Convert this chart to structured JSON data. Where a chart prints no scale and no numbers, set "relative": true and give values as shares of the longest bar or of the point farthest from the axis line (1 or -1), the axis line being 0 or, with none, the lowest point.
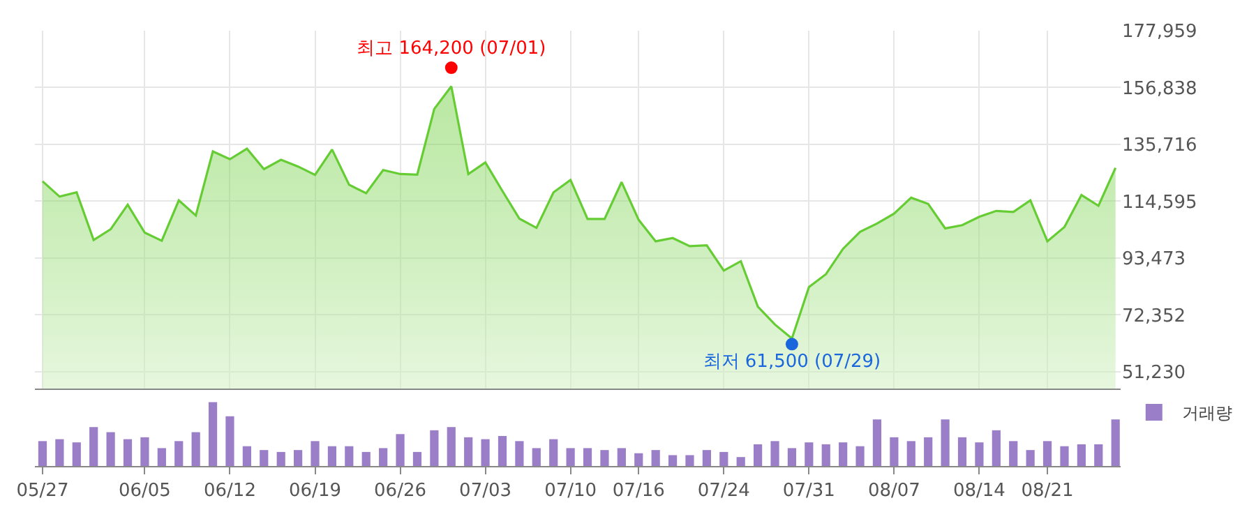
{
  "chart_data": [
    {
      "type": "area",
      "categories": [
        null,
        null,
        null,
        null,
        null,
        null,
        null,
        null,
        null,
        null,
        null,
        null,
        null,
        null,
        null,
        null,
        null,
        null,
        null,
        null,
        null,
        null,
        null,
        null,
        null,
        null,
        null,
        null,
        null,
        null,
        null,
        null,
        null,
        null,
        null,
        null,
        null,
        null,
        null,
        null,
        null,
        null,
        null,
        null,
        null,
        null,
        null,
        null,
        null,
        null,
        null,
        null,
        null,
        null,
        null,
        null,
        null,
        null,
        null,
        null,
        null,
        null,
        null,
        null
      ],
      "series": [
        {
          "color": "#66cc33",
          "values": [
            122000,
            116300,
            117900,
            100200,
            104200,
            113300,
            102900,
            99900,
            114900,
            109300,
            133100,
            130200,
            134100,
            126500,
            130000,
            127500,
            124400,
            133800,
            120700,
            117600,
            126200,
            124700,
            124500,
            148900,
            157300,
            124700,
            129000,
            118400,
            108100,
            104700,
            117900,
            122500,
            108000,
            108000,
            121700,
            107700,
            99700,
            100900,
            97900,
            98200,
            88800,
            92300,
            75400,
            68800,
            63600,
            82700,
            87500,
            96900,
            103200,
            106300,
            110000,
            115900,
            113600,
            104500,
            105700,
            108800,
            111000,
            110600,
            114900,
            99700,
            105000,
            116900,
            112900,
            127000
          ]
        },
        {
          "type": "scatter",
          "marker": "circle",
          "color": "#ff0000",
          "values": [
            null,
            null,
            null,
            null,
            null,
            null,
            null,
            null,
            null,
            null,
            null,
            null,
            null,
            null,
            null,
            null,
            null,
            null,
            null,
            null,
            null,
            null,
            null,
            null,
            164200,
            null,
            null,
            null,
            null,
            null,
            null,
            null,
            null,
            null,
            null,
            null,
            null,
            null,
            null,
            null,
            null,
            null,
            null,
            null,
            null,
            null,
            null,
            null,
            null,
            null,
            null,
            null,
            null,
            null,
            null,
            null,
            null,
            null,
            null,
            null,
            null,
            null,
            null,
            null
          ],
          "value_labels": [
            null,
            null,
            null,
            null,
            null,
            null,
            null,
            null,
            null,
            null,
            null,
            null,
            null,
            null,
            null,
            null,
            null,
            null,
            null,
            null,
            null,
            null,
            null,
            null,
            "최고 164,200 (07/01)",
            null,
            null,
            null,
            null,
            null,
            null,
            null,
            null,
            null,
            null,
            null,
            null,
            null,
            null,
            null,
            null,
            null,
            null,
            null,
            null,
            null,
            null,
            null,
            null,
            null,
            null,
            null,
            null,
            null,
            null,
            null,
            null,
            null,
            null,
            null,
            null,
            null,
            null,
            null
          ]
        },
        {
          "type": "scatter",
          "marker": "circle",
          "color": "#1a66dd",
          "values": [
            null,
            null,
            null,
            null,
            null,
            null,
            null,
            null,
            null,
            null,
            null,
            null,
            null,
            null,
            null,
            null,
            null,
            null,
            null,
            null,
            null,
            null,
            null,
            null,
            null,
            null,
            null,
            null,
            null,
            null,
            null,
            null,
            null,
            null,
            null,
            null,
            null,
            null,
            null,
            null,
            null,
            null,
            null,
            null,
            61500,
            null,
            null,
            null,
            null,
            null,
            null,
            null,
            null,
            null,
            null,
            null,
            null,
            null,
            null,
            null,
            null,
            null,
            null,
            null
          ],
          "value_labels": [
            null,
            null,
            null,
            null,
            null,
            null,
            null,
            null,
            null,
            null,
            null,
            null,
            null,
            null,
            null,
            null,
            null,
            null,
            null,
            null,
            null,
            null,
            null,
            null,
            null,
            null,
            null,
            null,
            null,
            null,
            null,
            null,
            null,
            null,
            null,
            null,
            null,
            null,
            null,
            null,
            null,
            null,
            null,
            null,
            "최저 61,500 (07/29)",
            null,
            null,
            null,
            null,
            null,
            null,
            null,
            null,
            null,
            null,
            null,
            null,
            null,
            null,
            null,
            null,
            null,
            null,
            null
          ]
        }
      ],
      "ylim": [
        45000,
        177959
      ],
      "yticks": [
        {
          "value": 51230,
          "label": "51,230"
        },
        {
          "value": 72352,
          "label": "72,352"
        },
        {
          "value": 93473,
          "label": "93,473"
        },
        {
          "value": 114595,
          "label": "114,595"
        },
        {
          "value": 135716,
          "label": "135,716"
        },
        {
          "value": 156838,
          "label": "156,838"
        },
        {
          "value": 177959,
          "label": "177,959"
        }
      ],
      "grid": true,
      "tick_labels": "y",
      "marker": "none"
    },
    {
      "type": "bar",
      "relative": true,
      "legend": "top right",
      "categories": [
        "05/27",
        null,
        null,
        null,
        null,
        null,
        "06/05",
        null,
        null,
        null,
        null,
        "06/12",
        null,
        null,
        null,
        null,
        "06/19",
        null,
        null,
        null,
        null,
        "06/26",
        null,
        null,
        null,
        null,
        "07/03",
        null,
        null,
        null,
        null,
        "07/10",
        null,
        null,
        null,
        "07/16",
        null,
        null,
        null,
        null,
        "07/24",
        null,
        null,
        null,
        null,
        "07/31",
        null,
        null,
        null,
        null,
        "08/07",
        null,
        null,
        null,
        null,
        "08/14",
        null,
        null,
        null,
        "08/21",
        null,
        null,
        null,
        null
      ],
      "series": [
        {
          "name": "거래량",
          "color": "#9a7fc8",
          "values": [
            0.39,
            0.42,
            0.37,
            0.61,
            0.53,
            0.42,
            0.45,
            0.28,
            0.39,
            0.53,
            1,
            0.78,
            0.31,
            0.25,
            0.22,
            0.25,
            0.39,
            0.31,
            0.31,
            0.22,
            0.28,
            0.5,
            0.22,
            0.56,
            0.61,
            0.45,
            0.42,
            0.47,
            0.39,
            0.28,
            0.42,
            0.28,
            0.28,
            0.25,
            0.28,
            0.2,
            0.25,
            0.17,
            0.17,
            0.25,
            0.22,
            0.14,
            0.34,
            0.39,
            0.28,
            0.37,
            0.34,
            0.37,
            0.31,
            0.73,
            0.45,
            0.39,
            0.45,
            0.73,
            0.45,
            0.37,
            0.56,
            0.39,
            0.25,
            0.39,
            0.31,
            0.34,
            0.34,
            0.73
          ]
        }
      ]
    }
  ]
}
